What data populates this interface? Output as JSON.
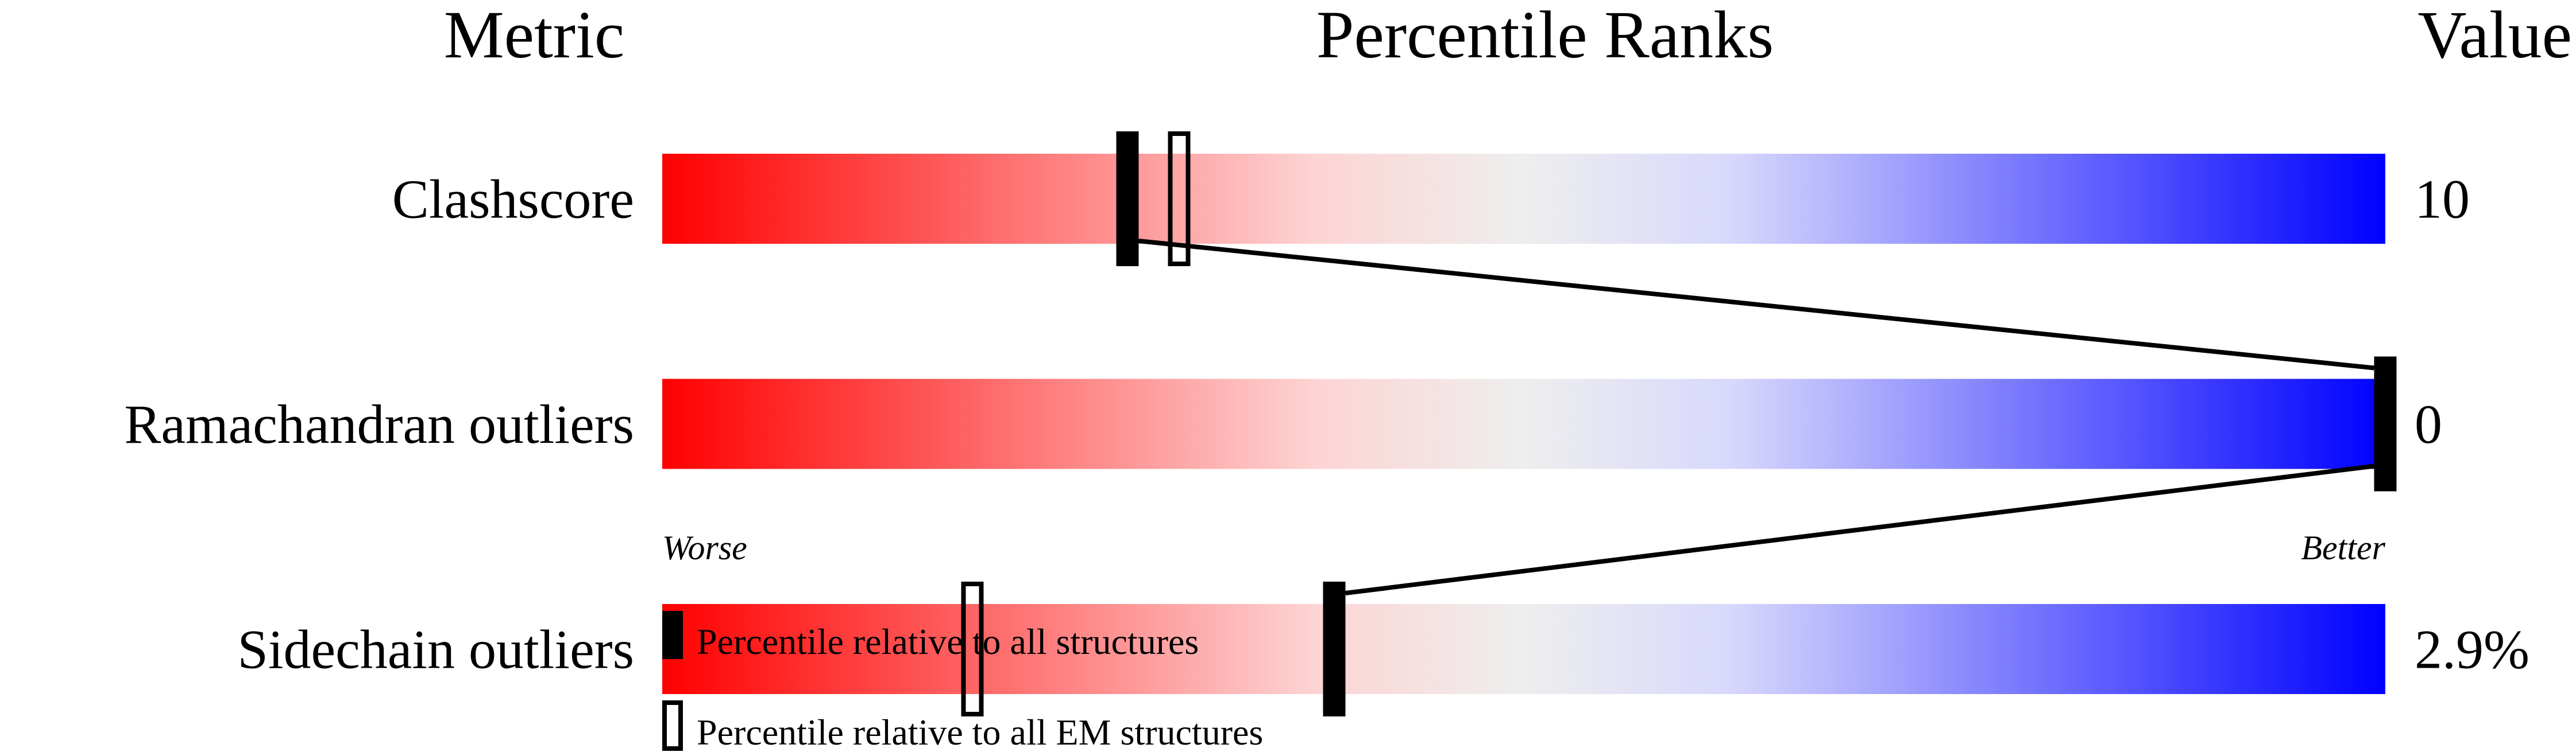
{
  "chart_data": {
    "type": "percentile-slider",
    "headers": {
      "metric": "Metric",
      "ranks": "Percentile Ranks",
      "value": "Value"
    },
    "xlim": [
      0,
      100
    ],
    "axis_labels": {
      "left": "Worse",
      "right": "Better"
    },
    "gradient_colors": [
      "#ff0000",
      "#fdd4d4",
      "#eeeeee",
      "#d8d8fc",
      "#0000ff"
    ],
    "metrics": [
      {
        "name": "Clashscore",
        "value": "10",
        "percentile_all": 27,
        "percentile_em": 30
      },
      {
        "name": "Ramachandran outliers",
        "value": "0",
        "percentile_all": 100,
        "percentile_em": 100
      },
      {
        "name": "Sidechain outliers",
        "value": "2.9%",
        "percentile_all": 39,
        "percentile_em": 18
      }
    ],
    "legend": [
      {
        "marker": "filled",
        "label": "Percentile relative to all structures"
      },
      {
        "marker": "open",
        "label": "Percentile relative to all EM structures"
      }
    ]
  }
}
